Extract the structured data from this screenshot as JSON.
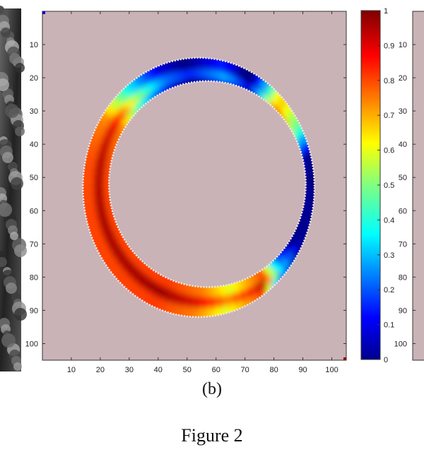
{
  "figure": {
    "subcaption": "(b)",
    "caption": "Figure 2"
  },
  "chart_data": {
    "type": "heatmap",
    "title": "",
    "xlabel": "",
    "ylabel": "",
    "xlim": [
      0,
      105
    ],
    "ylim": [
      0,
      105
    ],
    "x_ticks": [
      10,
      20,
      30,
      40,
      50,
      60,
      70,
      80,
      90,
      100
    ],
    "y_ticks": [
      10,
      20,
      30,
      40,
      50,
      60,
      70,
      80,
      90,
      100
    ],
    "y_axis_direction": "top-to-bottom",
    "background_color": "#c9b3b7",
    "colorbar": {
      "range": [
        0,
        1
      ],
      "ticks": [
        "0",
        "0.1",
        "0.2",
        "0.3",
        "0.4",
        "0.5",
        "0.6",
        "0.7",
        "0.8",
        "0.9",
        "1"
      ],
      "colormap": "jet"
    },
    "ring_region": {
      "description": "elliptical ring of values shown in jet colormap",
      "outer_center": [
        54,
        53
      ],
      "outer_radii": [
        40,
        39
      ],
      "inner_center": [
        57,
        52
      ],
      "inner_radii": [
        34,
        31
      ]
    },
    "value_regions": [
      {
        "area": "left-side",
        "value": 0.95
      },
      {
        "area": "bottom",
        "value": 0.9
      },
      {
        "area": "right-side",
        "value": 0.05
      },
      {
        "area": "top",
        "value": 0.3
      },
      {
        "area": "top-right",
        "value": 0.85
      }
    ]
  }
}
